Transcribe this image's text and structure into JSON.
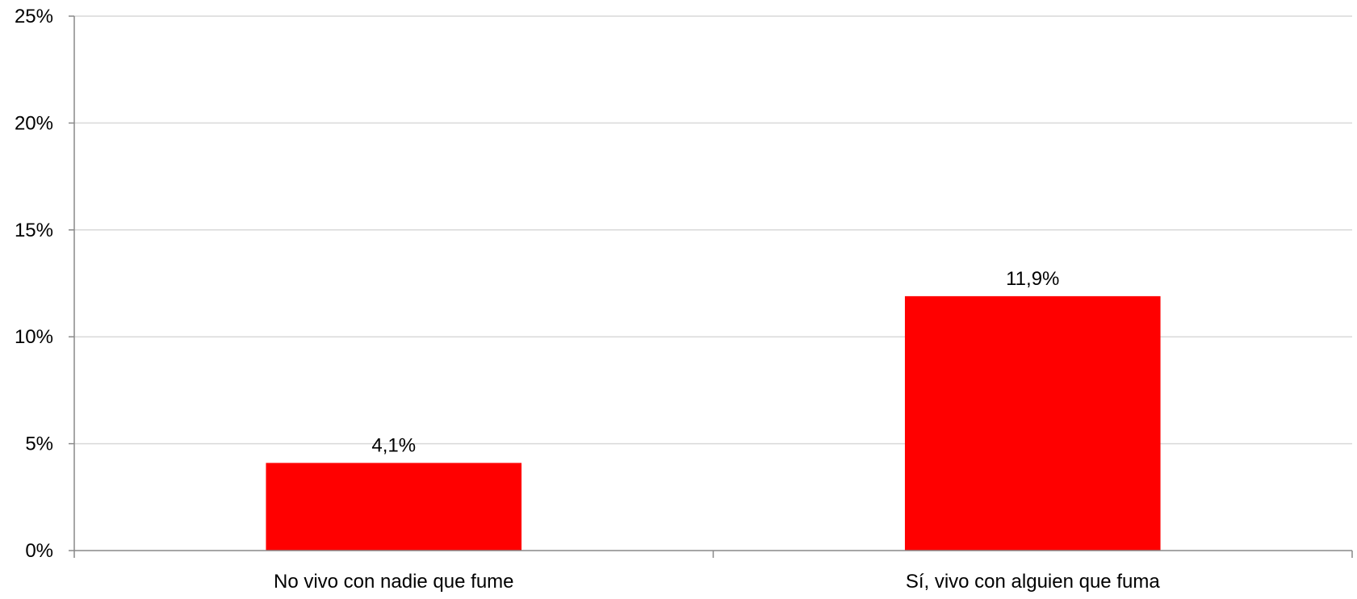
{
  "chart_data": {
    "type": "bar",
    "categories": [
      "No vivo con nadie que fume",
      "Sí, vivo con alguien que fuma"
    ],
    "values": [
      4.1,
      11.9
    ],
    "data_labels": [
      "4,1%",
      "11,9%"
    ],
    "title": "",
    "xlabel": "",
    "ylabel": "",
    "ylim": [
      0,
      25
    ],
    "yticks": [
      0,
      5,
      10,
      15,
      20,
      25
    ],
    "ytick_labels": [
      "0%",
      "5%",
      "10%",
      "15%",
      "20%",
      "25%"
    ],
    "grid": true,
    "legend": "none",
    "colors": {
      "bar": "#ff0000",
      "grid": "#d9d9d9",
      "axis": "#898989",
      "text": "#000000"
    }
  }
}
